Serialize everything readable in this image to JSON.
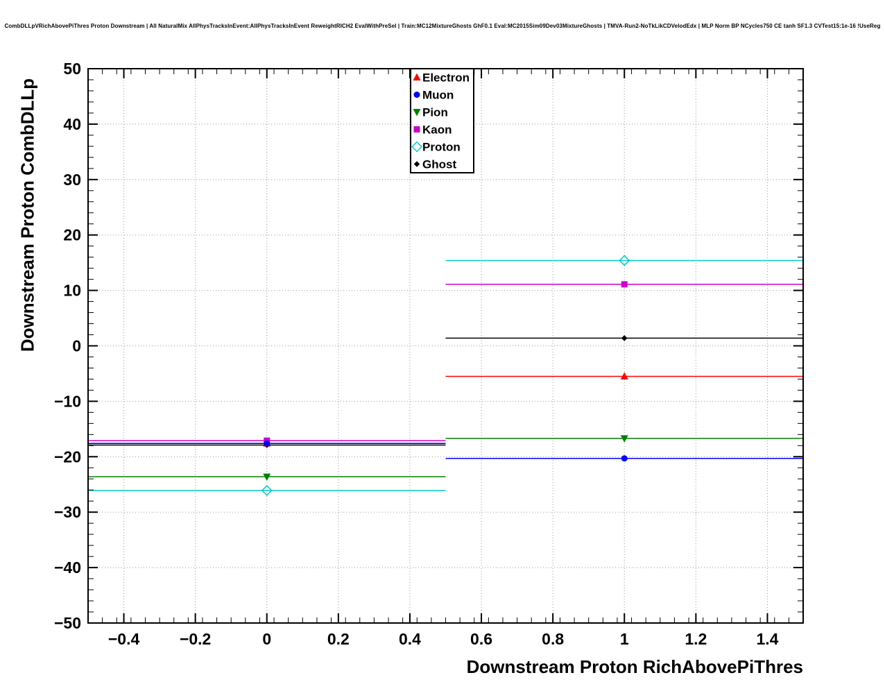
{
  "header": {
    "title": "CombDLLpVRichAbovePiThres Proton Downstream | All NaturalMix AllPhysTracksInEvent:AllPhysTracksInEvent ReweightRICH2 EvalWithPreSel | Train:MC12MixtureGhosts GhF0.1 Eval:MC2015Sim09Dev03MixtureGhosts | TMVA-Run2-NoTkLikCDVelodEdx | MLP Norm BP NCycles750 CE tanh SF1.3 CVTest15:1e-16 !UseReg"
  },
  "chart_data": {
    "type": "scatter",
    "title": "CombDLLpVRichAbovePiThres Proton Downstream | All NaturalMix AllPhysTracksInEvent:AllPhysTracksInEvent ReweightRICH2 EvalWithPreSel | Train:MC12MixtureGhosts GhF0.1 Eval:MC2015Sim09Dev03MixtureGhosts | TMVA-Run2-NoTkLikCDVelodEdx | MLP Norm BP NCycles750 CE tanh SF1.3 CVTest15:1e-16 !UseReg",
    "xlabel": "Downstream Proton RichAbovePiThres",
    "ylabel": "Downstream Proton CombDLLp",
    "xlim": [
      -0.5,
      1.5
    ],
    "ylim": [
      -50,
      50
    ],
    "x_ticks": [
      -0.4,
      -0.2,
      0,
      0.2,
      0.4,
      0.6,
      0.8,
      1,
      1.2,
      1.4
    ],
    "x_tick_labels": [
      "−0.4",
      "−0.2",
      "0",
      "0.2",
      "0.4",
      "0.6",
      "0.8",
      "1",
      "1.2",
      "1.4"
    ],
    "y_ticks": [
      -50,
      -40,
      -30,
      -20,
      -10,
      0,
      10,
      20,
      30,
      40,
      50
    ],
    "y_tick_labels": [
      "−50",
      "−40",
      "−30",
      "−20",
      "−10",
      "0",
      "10",
      "20",
      "30",
      "40",
      "50"
    ],
    "x_minor_step": 0.04,
    "y_minor_step": 2,
    "grid": true,
    "legend_position": "top-center",
    "series": [
      {
        "name": "Electron",
        "color": "#ff0000",
        "marker": "triangle-up",
        "points": [
          {
            "x": 0,
            "y": -17.6,
            "xlo": -0.5,
            "xhi": 0.5
          },
          {
            "x": 1,
            "y": -5.5,
            "xlo": 0.5,
            "xhi": 1.5
          }
        ]
      },
      {
        "name": "Kaon",
        "color": "#cc00cc",
        "marker": "square",
        "points": [
          {
            "x": 0,
            "y": -17.1,
            "xlo": -0.5,
            "xhi": 0.5
          },
          {
            "x": 1,
            "y": 11.1,
            "xlo": 0.5,
            "xhi": 1.5
          }
        ]
      },
      {
        "name": "Ghost",
        "color": "#000000",
        "marker": "diamond-small",
        "points": [
          {
            "x": 0,
            "y": -17.9,
            "xlo": -0.5,
            "xhi": 0.5
          },
          {
            "x": 1,
            "y": 1.4,
            "xlo": 0.5,
            "xhi": 1.5
          }
        ]
      },
      {
        "name": "Pion",
        "color": "#008000",
        "marker": "triangle-down",
        "points": [
          {
            "x": 0,
            "y": -23.6,
            "xlo": -0.5,
            "xhi": 0.5
          },
          {
            "x": 1,
            "y": -16.7,
            "xlo": 0.5,
            "xhi": 1.5
          }
        ]
      },
      {
        "name": "Proton",
        "color": "#00cccc",
        "marker": "diamond-open",
        "points": [
          {
            "x": 0,
            "y": -26.1,
            "xlo": -0.5,
            "xhi": 0.5
          },
          {
            "x": 1,
            "y": 15.4,
            "xlo": 0.5,
            "xhi": 1.5
          }
        ]
      },
      {
        "name": "Muon",
        "color": "#0000ff",
        "marker": "circle",
        "points": [
          {
            "x": 0,
            "y": -17.6,
            "xlo": -0.5,
            "xhi": 0.5
          },
          {
            "x": 1,
            "y": -20.3,
            "xlo": 0.5,
            "xhi": 1.5
          }
        ]
      }
    ],
    "legend_order": [
      "Electron",
      "Muon",
      "Pion",
      "Kaon",
      "Proton",
      "Ghost"
    ]
  }
}
